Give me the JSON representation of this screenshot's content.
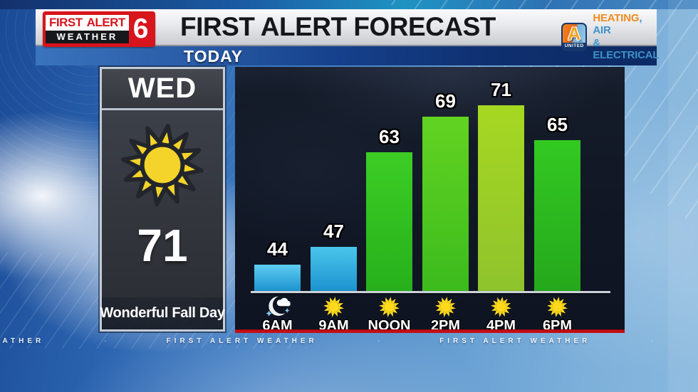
{
  "header": {
    "brand": {
      "first": "FIRST",
      "alert": "ALERT",
      "weather": "WEATHER",
      "channel": "6"
    },
    "title": "FIRST ALERT FORECAST",
    "sponsor": {
      "letter": "A",
      "name": "UNITED",
      "line1_orange": "HEATING",
      "line1_blue": ", AIR",
      "line2": "& ELECTRICAL"
    }
  },
  "today": {
    "label": "TODAY"
  },
  "day_panel": {
    "day": "WED",
    "condition_icon": "sunny-icon",
    "temperature": "71",
    "caption": "Wonderful Fall Day"
  },
  "chart_data": {
    "type": "bar",
    "title": "",
    "categories": [
      "6AM",
      "9AM",
      "NOON",
      "2PM",
      "4PM",
      "6PM"
    ],
    "values": [
      44,
      47,
      63,
      69,
      71,
      65
    ],
    "icons": [
      "moon-cloud-icon",
      "sunny-icon",
      "sunny-icon",
      "sunny-icon",
      "sunny-icon",
      "sunny-icon"
    ],
    "bar_colors": [
      {
        "top": "#5ecdf2",
        "bottom": "#1d93cf"
      },
      {
        "top": "#49c6ec",
        "bottom": "#1d93cf"
      },
      {
        "top": "#3ccd24",
        "bottom": "#27b01c"
      },
      {
        "top": "#62d321",
        "bottom": "#3cbb1d"
      },
      {
        "top": "#a6d822",
        "bottom": "#8fc32c"
      },
      {
        "top": "#33c922",
        "bottom": "#25a81c"
      }
    ],
    "ylim": [
      39.5,
      77
    ],
    "grid": false,
    "legend": "none",
    "value_label_color": "#ffffff",
    "axis_line_color": "#ccd2d8",
    "accent_line_color": "#c50d15"
  },
  "ticker": {
    "item": "FIRST ALERT WEATHER",
    "separator": "·",
    "repeat_count": 4
  },
  "colors": {
    "brand_red": "#d8141c",
    "sun_yellow": "#ffd91c",
    "panel_dark": "#101624",
    "sky_blue": "#3b79c0"
  }
}
